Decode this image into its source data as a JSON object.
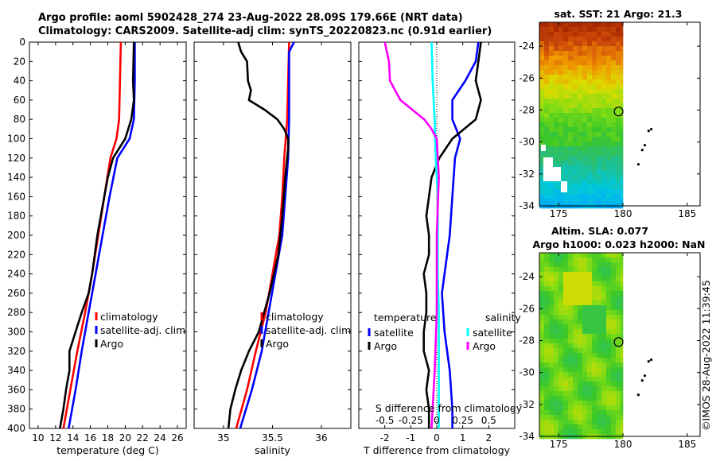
{
  "figure": {
    "title_line1": "Argo profile: aoml 5902428_274 23-Aug-2022 28.09S 179.66E (NRT data)",
    "title_line2": "Climatology: CARS2009. Satellite-adj clim: synTS_20220823.nc (0.91d earlier)",
    "credit": "©IMOS 28-Aug-2022 11:39:45"
  },
  "chart_data": [
    {
      "id": "temperature",
      "type": "line",
      "xlabel": "temperature (deg C)",
      "ylabel": "",
      "xlim": [
        9,
        27
      ],
      "ylim": [
        400,
        0
      ],
      "xticks": [
        10,
        12,
        14,
        16,
        18,
        20,
        22,
        24,
        26
      ],
      "yticks": [
        0,
        20,
        40,
        60,
        80,
        100,
        120,
        140,
        160,
        180,
        200,
        220,
        240,
        260,
        280,
        300,
        320,
        340,
        360,
        380,
        400
      ],
      "legend": [
        "climatology",
        "satellite-adj. clim",
        "Argo"
      ],
      "series": [
        {
          "name": "climatology",
          "color": "#ff0000",
          "depth": [
            0,
            40,
            80,
            100,
            120,
            160,
            200,
            240,
            280,
            320,
            360,
            400
          ],
          "values": [
            19.5,
            19.4,
            19.3,
            19.0,
            18.3,
            17.6,
            16.9,
            16.2,
            15.4,
            14.5,
            13.7,
            12.9
          ]
        },
        {
          "name": "satellite-adj. clim",
          "color": "#0000ff",
          "depth": [
            0,
            40,
            80,
            100,
            120,
            160,
            200,
            240,
            280,
            320,
            360,
            400
          ],
          "values": [
            21.1,
            21.1,
            21.0,
            20.5,
            19.1,
            18.2,
            17.4,
            16.6,
            15.8,
            15.0,
            14.3,
            13.5
          ]
        },
        {
          "name": "Argo",
          "color": "#000000",
          "depth": [
            0,
            40,
            60,
            80,
            100,
            120,
            140,
            160,
            180,
            200,
            220,
            240,
            260,
            280,
            300,
            320,
            340,
            360,
            380,
            400
          ],
          "values": [
            21.0,
            20.9,
            21.0,
            20.7,
            20.0,
            18.6,
            18.0,
            17.6,
            17.2,
            16.8,
            16.5,
            16.2,
            15.8,
            15.0,
            14.3,
            13.6,
            13.6,
            13.2,
            12.9,
            12.5
          ]
        }
      ]
    },
    {
      "id": "salinity",
      "type": "line",
      "xlabel": "salinity",
      "xlim": [
        34.7,
        36.3
      ],
      "ylim": [
        400,
        0
      ],
      "xticks": [
        35,
        35.5,
        36
      ],
      "legend": [
        "climatology",
        "satellite-adj. clim",
        "Argo"
      ],
      "series": [
        {
          "name": "climatology",
          "color": "#ff0000",
          "depth": [
            0,
            40,
            80,
            120,
            160,
            200,
            240,
            280,
            320,
            360,
            400
          ],
          "values": [
            35.67,
            35.66,
            35.65,
            35.62,
            35.6,
            35.57,
            35.5,
            35.43,
            35.33,
            35.24,
            35.13
          ]
        },
        {
          "name": "satellite-adj. clim",
          "color": "#0000ff",
          "depth": [
            0,
            10,
            40,
            80,
            120,
            160,
            200,
            240,
            280,
            320,
            360,
            400
          ],
          "values": [
            35.72,
            35.67,
            35.67,
            35.67,
            35.66,
            35.63,
            35.6,
            35.53,
            35.46,
            35.39,
            35.29,
            35.17
          ]
        },
        {
          "name": "Argo",
          "color": "#000000",
          "depth": [
            0,
            10,
            20,
            40,
            50,
            60,
            70,
            80,
            90,
            100,
            110,
            140,
            180,
            220,
            260,
            300,
            320,
            340,
            360,
            380,
            400
          ],
          "values": [
            35.15,
            35.18,
            35.24,
            35.25,
            35.28,
            35.26,
            35.42,
            35.55,
            35.62,
            35.66,
            35.66,
            35.63,
            35.6,
            35.56,
            35.47,
            35.36,
            35.26,
            35.18,
            35.12,
            35.07,
            35.05
          ]
        }
      ]
    },
    {
      "id": "difference",
      "type": "line",
      "xlabel": "T difference from climatology",
      "top_label": "S difference from climatology",
      "xlim": [
        -3,
        3
      ],
      "ylim": [
        400,
        0
      ],
      "xticks": [
        -2,
        -1,
        0,
        1,
        2
      ],
      "s_xlim": [
        -0.75,
        0.75
      ],
      "s_ticks": [
        "-0.5",
        "-0.25",
        "0",
        "0.25",
        "0.5"
      ],
      "legend_temperature_heading": "temperature",
      "legend_salinity_heading": "salinity",
      "legend_temperature": [
        "satellite",
        "Argo"
      ],
      "legend_salinity": [
        "satellite",
        "Argo"
      ],
      "series": [
        {
          "name": "T satellite",
          "color": "#0000ff",
          "depth": [
            0,
            20,
            40,
            60,
            80,
            100,
            120,
            160,
            200,
            260,
            300,
            340,
            380,
            400
          ],
          "values": [
            1.6,
            1.5,
            1.1,
            0.6,
            0.6,
            0.9,
            0.7,
            0.6,
            0.5,
            0.2,
            0.3,
            0.5,
            0.6,
            0.6
          ]
        },
        {
          "name": "T Argo",
          "color": "#000000",
          "depth": [
            0,
            20,
            40,
            60,
            80,
            100,
            120,
            140,
            160,
            180,
            200,
            220,
            240,
            260,
            280,
            300,
            320,
            340,
            360,
            380,
            400
          ],
          "values": [
            1.7,
            1.6,
            1.5,
            1.7,
            1.5,
            0.6,
            0.1,
            -0.2,
            -0.3,
            -0.4,
            -0.3,
            -0.3,
            -0.5,
            -0.4,
            -0.4,
            -0.5,
            -0.5,
            -0.3,
            -0.4,
            -0.3,
            -0.3
          ]
        },
        {
          "name": "S satellite",
          "color": "#00ffff",
          "depth": [
            0,
            40,
            80,
            120,
            160,
            200,
            240,
            280,
            320,
            360,
            400
          ],
          "values": [
            -0.05,
            -0.04,
            -0.02,
            -0.01,
            0.01,
            0.01,
            0.01,
            0.02,
            0.02,
            0.02,
            0.02
          ]
        },
        {
          "name": "S Argo",
          "color": "#ff00ff",
          "depth": [
            0,
            20,
            40,
            60,
            80,
            90,
            100,
            120,
            140,
            200,
            280,
            340,
            400
          ],
          "values": [
            -0.5,
            -0.46,
            -0.45,
            -0.35,
            -0.12,
            -0.05,
            0.0,
            0.01,
            0.02,
            0.0,
            0.0,
            -0.02,
            -0.05
          ]
        }
      ]
    },
    {
      "id": "sst_map",
      "type": "heatmap",
      "title": "sat. SST: 21 Argo: 21.3",
      "xlim": [
        173.5,
        186
      ],
      "ylim": [
        -34,
        -22.5
      ],
      "xticks": [
        175,
        180,
        185
      ],
      "yticks": [
        -24,
        -26,
        -28,
        -30,
        -32,
        -34
      ],
      "float_position": [
        179.66,
        -28.09
      ],
      "island_points": [
        [
          182.2,
          -29.2
        ],
        [
          182.0,
          -29.3
        ],
        [
          181.7,
          -30.2
        ],
        [
          181.5,
          -30.5
        ],
        [
          181.2,
          -31.4
        ]
      ]
    },
    {
      "id": "sla_map",
      "type": "heatmap",
      "title_line1": "Altim. SLA: 0.077",
      "title_line2": "Argo h1000: 0.023 h2000: NaN",
      "xlim": [
        173.5,
        186
      ],
      "ylim": [
        -34,
        -22.5
      ],
      "xticks": [
        175,
        180,
        185
      ],
      "yticks": [
        -24,
        -26,
        -28,
        -30,
        -32,
        -34
      ],
      "float_position": [
        179.66,
        -28.09
      ],
      "island_points": [
        [
          182.2,
          -29.2
        ],
        [
          182.0,
          -29.3
        ],
        [
          181.7,
          -30.2
        ],
        [
          181.5,
          -30.5
        ],
        [
          181.2,
          -31.4
        ]
      ]
    }
  ]
}
